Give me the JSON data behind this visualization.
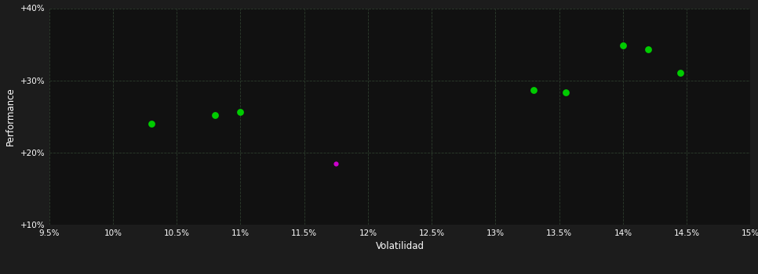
{
  "background_color": "#1c1c1c",
  "plot_bg_color": "#111111",
  "grid_color": "#2d3d2d",
  "text_color": "#ffffff",
  "xlabel": "Volatilidad",
  "ylabel": "Performance",
  "xlim": [
    0.095,
    0.15
  ],
  "ylim": [
    0.1,
    0.4
  ],
  "xticks": [
    0.095,
    0.1,
    0.105,
    0.11,
    0.115,
    0.12,
    0.125,
    0.13,
    0.135,
    0.14,
    0.145,
    0.15
  ],
  "yticks": [
    0.1,
    0.2,
    0.3,
    0.4
  ],
  "ytick_labels": [
    "+10%",
    "+20%",
    "+30%",
    "+40%"
  ],
  "xtick_labels": [
    "9.5%",
    "10%",
    "10.5%",
    "11%",
    "11.5%",
    "12%",
    "12.5%",
    "13%",
    "13.5%",
    "14%",
    "14.5%",
    "15%"
  ],
  "green_points": [
    [
      0.103,
      0.24
    ],
    [
      0.108,
      0.252
    ],
    [
      0.11,
      0.256
    ],
    [
      0.133,
      0.287
    ],
    [
      0.1355,
      0.283
    ],
    [
      0.14,
      0.348
    ],
    [
      0.142,
      0.343
    ],
    [
      0.1445,
      0.31
    ]
  ],
  "magenta_points": [
    [
      0.1175,
      0.185
    ]
  ],
  "green_color": "#00cc00",
  "magenta_color": "#cc00cc",
  "marker_size": 40,
  "figsize": [
    9.66,
    3.5
  ],
  "dpi": 100
}
